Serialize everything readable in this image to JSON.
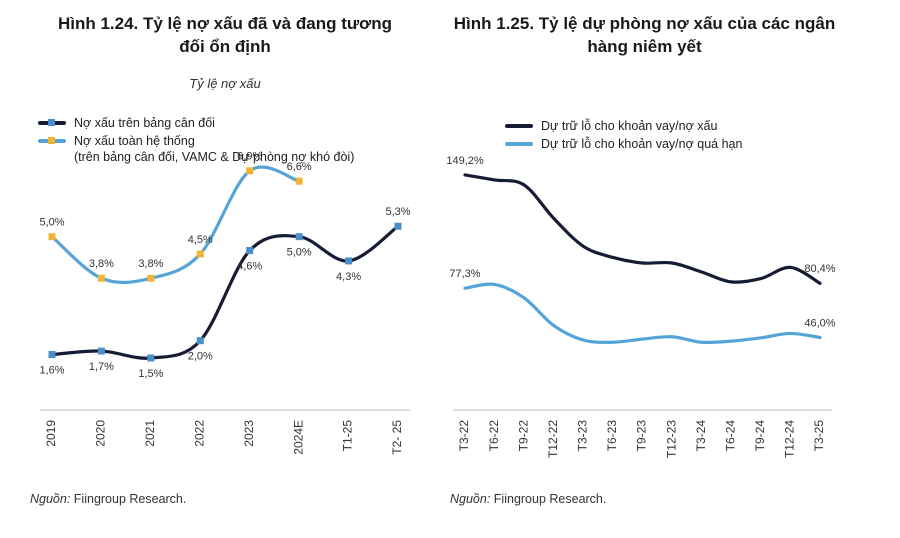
{
  "chart_data": [
    {
      "type": "line",
      "title": "Hình 1.24. Tỷ lệ nợ xấu đã và đang tương đối ổn định",
      "subtitle": "Tỷ lệ nợ xấu",
      "categories": [
        "2019",
        "2020",
        "2021",
        "2022",
        "2023",
        "2024E",
        "T1-25",
        "T2- 25"
      ],
      "series": [
        {
          "name": "Nợ xấu trên bảng cân đối",
          "color": "#161c34",
          "marker_color": "#4a8fc9",
          "values": [
            1.6,
            1.7,
            1.5,
            2.0,
            4.6,
            5.0,
            4.3,
            5.3
          ],
          "value_labels": [
            "1,6%",
            "1,7%",
            "1,5%",
            "2,0%",
            "4,6%",
            "5,0%",
            "4,3%",
            "5,3%"
          ]
        },
        {
          "name": "Nợ xấu toàn hệ thống\n(trên bảng cân đối, VAMC & Dự phòng nợ khó đòi)",
          "color": "#55a4d8",
          "marker_color": "#f2b434",
          "values": [
            5.0,
            3.8,
            3.8,
            4.5,
            6.9,
            6.6,
            null,
            null
          ],
          "value_labels": [
            "5,0%",
            "3,8%",
            "3,8%",
            "4,5%",
            "6,9%",
            "6,6%",
            null,
            null
          ]
        }
      ],
      "ylim": [
        0,
        7.5
      ],
      "source": {
        "label": "Nguồn:",
        "text": "Fiingroup Research."
      }
    },
    {
      "type": "line",
      "title": "Hình 1.25. Tỷ lệ dự phòng nợ xấu của các ngân hàng niêm yết",
      "categories": [
        "T3-22",
        "T6-22",
        "T9-22",
        "T12-22",
        "T3-23",
        "T6-23",
        "T9-23",
        "T12-23",
        "T3-24",
        "T6-24",
        "T9-24",
        "T12-24",
        "T3-25"
      ],
      "series": [
        {
          "name": "Dự trữ lỗ cho khoản vay/nợ xấu",
          "color": "#161c34",
          "values": [
            149.2,
            146,
            142.8,
            121.6,
            103.9,
            96.8,
            93.3,
            93.3,
            87.6,
            81.3,
            83.4,
            90.5,
            80.4
          ],
          "value_labels": [
            "149,2%",
            null,
            null,
            null,
            null,
            null,
            null,
            null,
            null,
            null,
            null,
            null,
            "80,4%"
          ]
        },
        {
          "name": "Dự trữ lỗ cho khoản vay/nợ quá hạn",
          "color": "#55a4d8",
          "values": [
            77.3,
            79.7,
            71.1,
            53.6,
            44.4,
            43,
            45,
            46.5,
            43,
            43.7,
            45.8,
            48.6,
            46.0
          ],
          "value_labels": [
            "77,3%",
            null,
            null,
            null,
            null,
            null,
            null,
            null,
            null,
            null,
            null,
            null,
            "46,0%"
          ]
        }
      ],
      "ylim": [
        0,
        165
      ],
      "source": {
        "label": "Nguồn:",
        "text": "Fiingroup Research."
      }
    }
  ]
}
